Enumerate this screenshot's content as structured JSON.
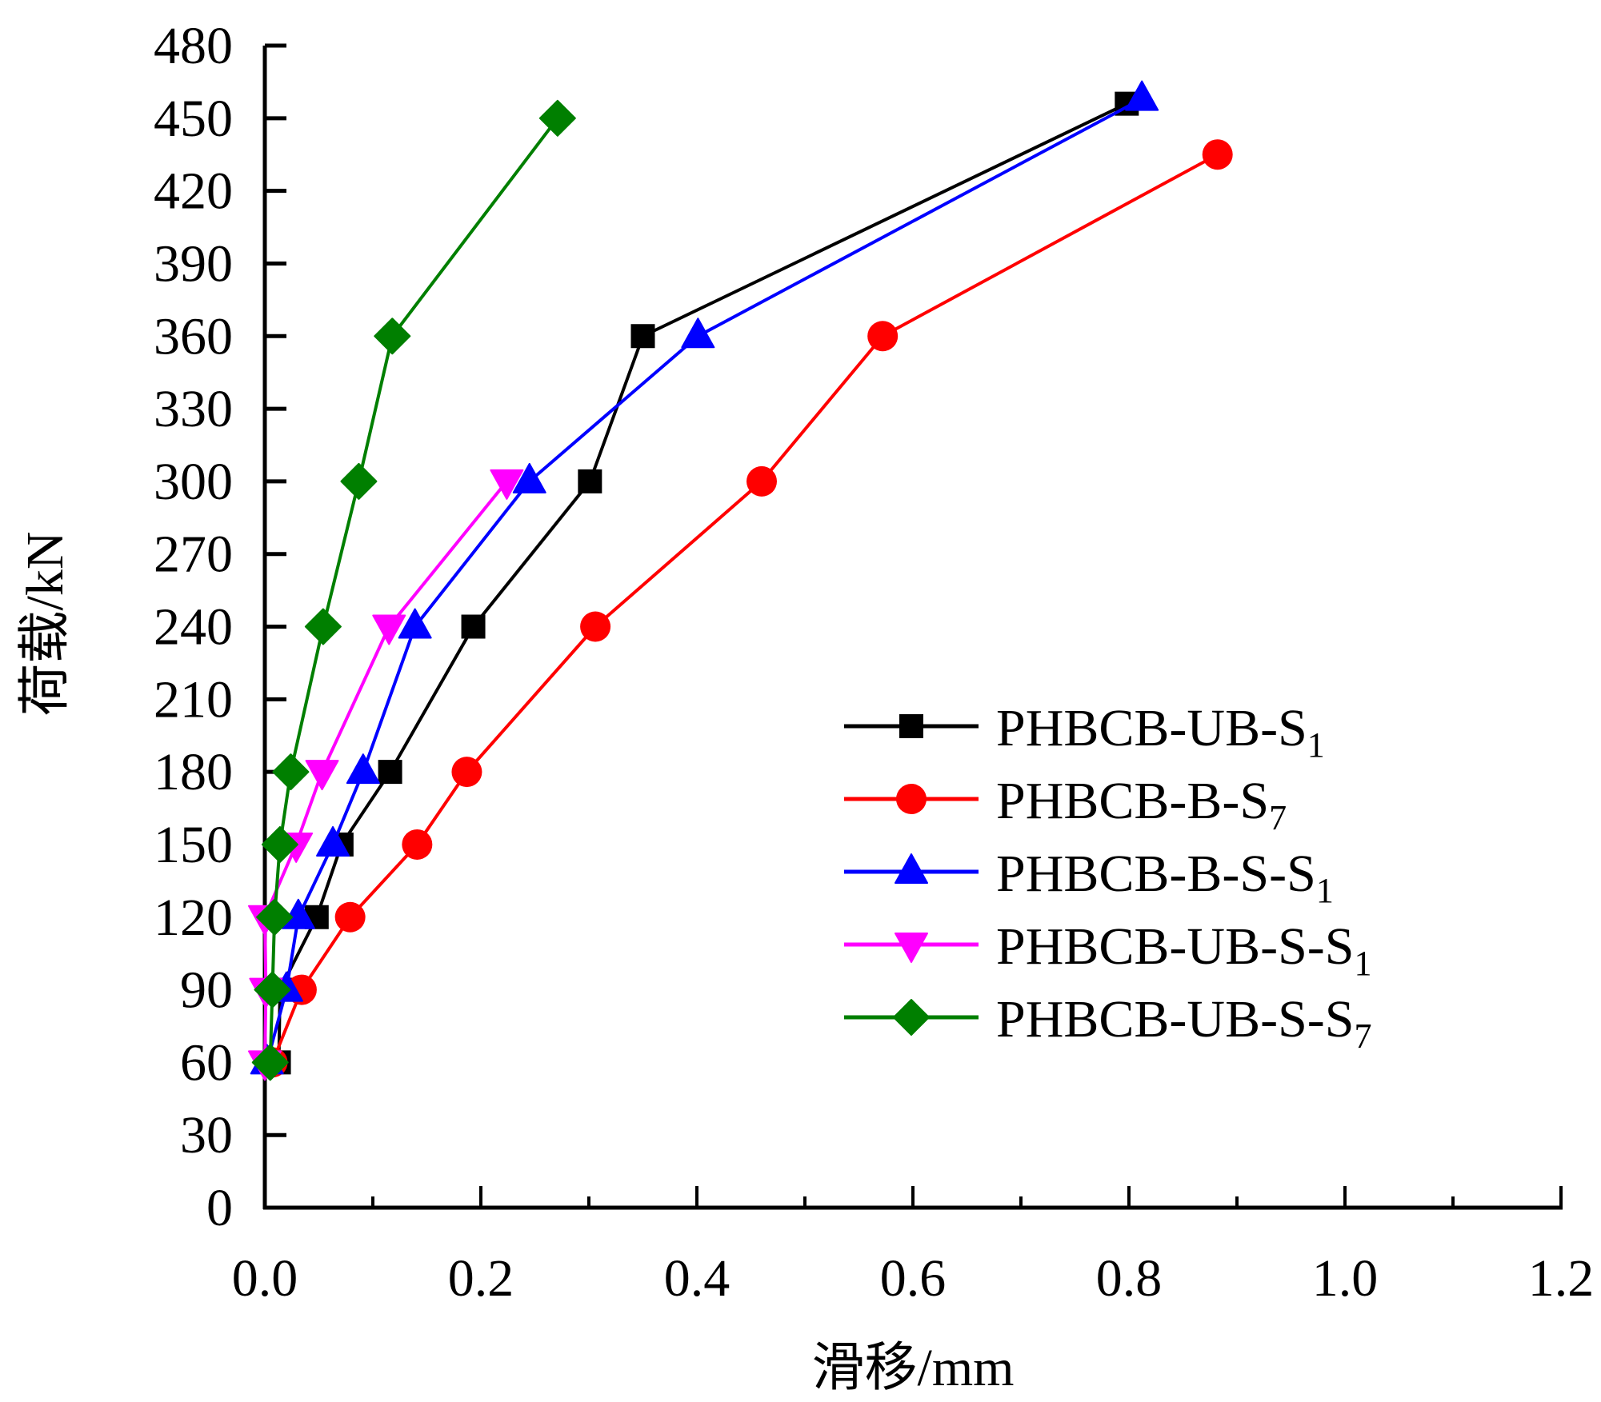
{
  "chart_data": {
    "type": "line",
    "title": "",
    "xlabel": "滑移/mm",
    "ylabel": "荷载/kN",
    "xlim": [
      0.0,
      1.2
    ],
    "ylim": [
      0,
      480
    ],
    "x_ticks": [
      "0.0",
      "0.2",
      "0.4",
      "0.6",
      "0.8",
      "1.0",
      "1.2"
    ],
    "x_tick_values": [
      0.0,
      0.2,
      0.4,
      0.6,
      0.8,
      1.0,
      1.2
    ],
    "x_minor_tick_values": [
      0.1,
      0.3,
      0.5,
      0.7,
      0.9,
      1.1
    ],
    "y_ticks": [
      "0",
      "30",
      "60",
      "90",
      "120",
      "150",
      "180",
      "210",
      "240",
      "270",
      "300",
      "330",
      "360",
      "390",
      "420",
      "450",
      "480"
    ],
    "y_tick_values": [
      0,
      30,
      60,
      90,
      120,
      150,
      180,
      210,
      240,
      270,
      300,
      330,
      360,
      390,
      420,
      450,
      480
    ],
    "grid": false,
    "legend_position": "center-right",
    "series": [
      {
        "name": "PHBCB-UB-S",
        "subscript": "1",
        "color": "#000000",
        "marker": "square",
        "x": [
          0.013,
          0.014,
          0.048,
          0.071,
          0.116,
          0.193,
          0.301,
          0.35,
          0.798
        ],
        "y": [
          60,
          90,
          120,
          150,
          180,
          240,
          300,
          360,
          456
        ]
      },
      {
        "name": "PHBCB-B-S",
        "subscript": "7",
        "color": "#ff0000",
        "marker": "circle",
        "x": [
          0.007,
          0.034,
          0.079,
          0.141,
          0.187,
          0.306,
          0.46,
          0.572,
          0.882
        ],
        "y": [
          60,
          90,
          120,
          150,
          180,
          240,
          300,
          360,
          435
        ]
      },
      {
        "name": "PHBCB-B-S-S",
        "subscript": "1",
        "color": "#0000ff",
        "marker": "triangle-up",
        "x": [
          0.002,
          0.02,
          0.031,
          0.063,
          0.091,
          0.139,
          0.245,
          0.401,
          0.812
        ],
        "y": [
          60,
          90,
          120,
          150,
          180,
          240,
          300,
          360,
          458
        ]
      },
      {
        "name": "PHBCB-UB-S-S",
        "subscript": "1",
        "color": "#ff00ff",
        "marker": "triangle-down",
        "x": [
          0.0,
          0.001,
          0.0,
          0.029,
          0.053,
          0.115,
          0.224
        ],
        "y": [
          60,
          90,
          120,
          150,
          180,
          240,
          300
        ]
      },
      {
        "name": "PHBCB-UB-S-S",
        "subscript": "7",
        "color": "#007f00",
        "marker": "diamond",
        "x": [
          0.005,
          0.007,
          0.009,
          0.014,
          0.024,
          0.054,
          0.087,
          0.118,
          0.271
        ],
        "y": [
          60,
          90,
          120,
          150,
          180,
          240,
          300,
          360,
          450
        ]
      }
    ]
  }
}
